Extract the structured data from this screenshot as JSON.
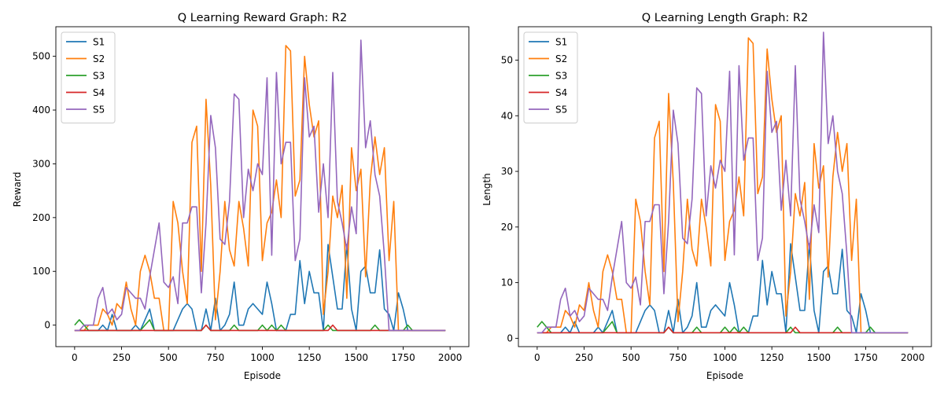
{
  "series_colors": {
    "S1": "#1f77b4",
    "S2": "#ff7f0e",
    "S3": "#2ca02c",
    "S4": "#d62728",
    "S5": "#9467bd"
  },
  "chart_data": [
    {
      "type": "line",
      "title": "Q Learning Reward Graph: R2",
      "xlabel": "Episode",
      "ylabel": "Reward",
      "xlim": [
        -100,
        2100
      ],
      "ylim": [
        -40,
        555
      ],
      "xticks": [
        0,
        250,
        500,
        750,
        1000,
        1250,
        1500,
        1750,
        2000
      ],
      "yticks": [
        0,
        100,
        200,
        300,
        400,
        500
      ],
      "grid": false,
      "legend_position": "upper-left",
      "x": [
        0,
        25,
        50,
        75,
        100,
        125,
        150,
        175,
        200,
        225,
        250,
        275,
        300,
        325,
        350,
        375,
        400,
        425,
        450,
        475,
        500,
        525,
        550,
        575,
        600,
        625,
        650,
        675,
        700,
        725,
        750,
        775,
        800,
        825,
        850,
        875,
        900,
        925,
        950,
        975,
        1000,
        1025,
        1050,
        1075,
        1100,
        1125,
        1150,
        1175,
        1200,
        1225,
        1250,
        1275,
        1300,
        1325,
        1350,
        1375,
        1400,
        1425,
        1450,
        1475,
        1500,
        1525,
        1550,
        1575,
        1600,
        1625,
        1650,
        1675,
        1700,
        1725,
        1750,
        1775,
        1800,
        1825,
        1850,
        1875,
        1900,
        1925,
        1950,
        1975
      ],
      "series": [
        {
          "name": "S1",
          "values": [
            -10,
            -10,
            -10,
            -10,
            -10,
            -10,
            0,
            -10,
            20,
            -10,
            -10,
            -10,
            -10,
            0,
            -10,
            10,
            30,
            -10,
            -10,
            -10,
            -10,
            -10,
            10,
            30,
            40,
            30,
            -10,
            -10,
            30,
            -10,
            50,
            -10,
            0,
            20,
            80,
            0,
            0,
            30,
            40,
            30,
            20,
            80,
            40,
            -10,
            -10,
            -10,
            20,
            20,
            120,
            40,
            100,
            60,
            60,
            -10,
            150,
            90,
            30,
            30,
            150,
            30,
            -10,
            100,
            110,
            60,
            60,
            140,
            30,
            20,
            -10,
            60,
            30,
            -10,
            -10,
            -10,
            -10,
            -10,
            -10,
            -10,
            -10,
            -10
          ]
        },
        {
          "name": "S2",
          "values": [
            -10,
            -10,
            -10,
            0,
            0,
            0,
            30,
            20,
            0,
            40,
            30,
            80,
            30,
            0,
            100,
            130,
            100,
            50,
            50,
            -10,
            -10,
            230,
            190,
            100,
            40,
            340,
            370,
            100,
            420,
            260,
            10,
            100,
            230,
            140,
            110,
            230,
            180,
            110,
            400,
            370,
            120,
            190,
            210,
            270,
            200,
            520,
            510,
            240,
            270,
            500,
            410,
            350,
            380,
            20,
            100,
            240,
            200,
            260,
            50,
            330,
            250,
            290,
            90,
            270,
            350,
            280,
            330,
            120,
            230,
            -10,
            -10,
            -10,
            -10,
            -10,
            -10,
            -10,
            -10,
            -10,
            -10,
            -10
          ]
        },
        {
          "name": "S3",
          "values": [
            0,
            10,
            0,
            -10,
            -10,
            -10,
            -10,
            -10,
            -10,
            -10,
            -10,
            -10,
            -10,
            -10,
            -10,
            0,
            10,
            -10,
            -10,
            -10,
            -10,
            -10,
            -10,
            -10,
            -10,
            -10,
            -10,
            -10,
            0,
            -10,
            -10,
            -10,
            -10,
            -10,
            0,
            -10,
            -10,
            -10,
            -10,
            -10,
            0,
            -10,
            0,
            -10,
            0,
            -10,
            -10,
            -10,
            -10,
            -10,
            -10,
            -10,
            -10,
            -10,
            0,
            -10,
            -10,
            -10,
            -10,
            -10,
            -10,
            -10,
            -10,
            -10,
            0,
            -10,
            -10,
            -10,
            -10,
            -10,
            -10,
            0,
            -10,
            -10,
            -10,
            -10,
            -10,
            -10,
            -10,
            -10
          ]
        },
        {
          "name": "S4",
          "values": [
            -10,
            -10,
            -10,
            -10,
            -10,
            -10,
            -10,
            -10,
            -10,
            -10,
            -10,
            -10,
            -10,
            -10,
            -10,
            -10,
            -10,
            -10,
            -10,
            -10,
            -10,
            -10,
            -10,
            -10,
            -10,
            -10,
            -10,
            -10,
            0,
            -10,
            -10,
            -10,
            -10,
            -10,
            -10,
            -10,
            -10,
            -10,
            -10,
            -10,
            -10,
            -10,
            -10,
            -10,
            -10,
            -10,
            -10,
            -10,
            -10,
            -10,
            -10,
            -10,
            -10,
            -10,
            -10,
            0,
            -10,
            -10,
            -10,
            -10,
            -10,
            -10,
            -10,
            -10,
            -10,
            -10,
            -10,
            -10,
            -10,
            -10,
            -10,
            -10,
            -10,
            -10,
            -10,
            -10,
            -10,
            -10,
            -10,
            -10
          ]
        },
        {
          "name": "S5",
          "values": [
            -10,
            -10,
            0,
            0,
            0,
            50,
            70,
            20,
            30,
            10,
            20,
            70,
            60,
            50,
            50,
            30,
            90,
            140,
            190,
            80,
            70,
            90,
            40,
            190,
            190,
            220,
            220,
            60,
            190,
            390,
            330,
            160,
            150,
            230,
            430,
            420,
            200,
            290,
            250,
            300,
            280,
            460,
            130,
            470,
            300,
            340,
            340,
            120,
            160,
            460,
            350,
            370,
            210,
            300,
            200,
            470,
            230,
            190,
            140,
            220,
            170,
            530,
            330,
            380,
            280,
            240,
            130,
            -10,
            -10,
            -10,
            -10,
            -10,
            -10,
            -10,
            -10,
            -10,
            -10,
            -10,
            -10,
            -10
          ]
        }
      ]
    },
    {
      "type": "line",
      "title": "Q Learning Length Graph: R2",
      "xlabel": "Episode",
      "ylabel": "Length",
      "xlim": [
        -100,
        2100
      ],
      "ylim": [
        -1.5,
        56
      ],
      "xticks": [
        0,
        250,
        500,
        750,
        1000,
        1250,
        1500,
        1750,
        2000
      ],
      "yticks": [
        0,
        10,
        20,
        30,
        40,
        50
      ],
      "grid": false,
      "legend_position": "upper-left",
      "x": [
        0,
        25,
        50,
        75,
        100,
        125,
        150,
        175,
        200,
        225,
        250,
        275,
        300,
        325,
        350,
        375,
        400,
        425,
        450,
        475,
        500,
        525,
        550,
        575,
        600,
        625,
        650,
        675,
        700,
        725,
        750,
        775,
        800,
        825,
        850,
        875,
        900,
        925,
        950,
        975,
        1000,
        1025,
        1050,
        1075,
        1100,
        1125,
        1150,
        1175,
        1200,
        1225,
        1250,
        1275,
        1300,
        1325,
        1350,
        1375,
        1400,
        1425,
        1450,
        1475,
        1500,
        1525,
        1550,
        1575,
        1600,
        1625,
        1650,
        1675,
        1700,
        1725,
        1750,
        1775,
        1800,
        1825,
        1850,
        1875,
        1900,
        1925,
        1950,
        1975
      ],
      "series": [
        {
          "name": "S1",
          "values": [
            1,
            1,
            1,
            1,
            1,
            1,
            2,
            1,
            3,
            1,
            1,
            1,
            1,
            2,
            1,
            3,
            5,
            1,
            1,
            1,
            1,
            1,
            3,
            5,
            6,
            5,
            1,
            1,
            5,
            1,
            7,
            1,
            2,
            4,
            10,
            2,
            2,
            5,
            6,
            5,
            4,
            10,
            6,
            1,
            1,
            1,
            4,
            4,
            14,
            6,
            12,
            8,
            8,
            1,
            17,
            11,
            5,
            5,
            17,
            5,
            1,
            12,
            13,
            8,
            8,
            16,
            5,
            4,
            1,
            8,
            5,
            1,
            1,
            1,
            1,
            1,
            1,
            1,
            1,
            1
          ]
        },
        {
          "name": "S2",
          "values": [
            1,
            1,
            1,
            2,
            2,
            2,
            5,
            4,
            2,
            6,
            5,
            10,
            5,
            2,
            12,
            15,
            12,
            7,
            7,
            1,
            1,
            25,
            21,
            12,
            6,
            36,
            39,
            12,
            44,
            28,
            3,
            12,
            25,
            16,
            13,
            25,
            20,
            13,
            42,
            39,
            14,
            21,
            23,
            29,
            22,
            54,
            53,
            26,
            29,
            52,
            43,
            37,
            40,
            4,
            12,
            26,
            22,
            28,
            7,
            35,
            27,
            31,
            11,
            29,
            37,
            30,
            35,
            14,
            25,
            1,
            1,
            1,
            1,
            1,
            1,
            1,
            1,
            1,
            1,
            1
          ]
        },
        {
          "name": "S3",
          "values": [
            2,
            3,
            2,
            1,
            1,
            1,
            1,
            1,
            1,
            1,
            1,
            1,
            1,
            1,
            1,
            2,
            3,
            1,
            1,
            1,
            1,
            1,
            1,
            1,
            1,
            1,
            1,
            1,
            2,
            1,
            1,
            1,
            1,
            1,
            2,
            1,
            1,
            1,
            1,
            1,
            2,
            1,
            2,
            1,
            2,
            1,
            1,
            1,
            1,
            1,
            1,
            1,
            1,
            1,
            2,
            1,
            1,
            1,
            1,
            1,
            1,
            1,
            1,
            1,
            2,
            1,
            1,
            1,
            1,
            1,
            1,
            2,
            1,
            1,
            1,
            1,
            1,
            1,
            1,
            1
          ]
        },
        {
          "name": "S4",
          "values": [
            1,
            1,
            1,
            1,
            1,
            1,
            1,
            1,
            1,
            1,
            1,
            1,
            1,
            1,
            1,
            1,
            1,
            1,
            1,
            1,
            1,
            1,
            1,
            1,
            1,
            1,
            1,
            1,
            2,
            1,
            1,
            1,
            1,
            1,
            1,
            1,
            1,
            1,
            1,
            1,
            1,
            1,
            1,
            1,
            1,
            1,
            1,
            1,
            1,
            1,
            1,
            1,
            1,
            1,
            1,
            2,
            1,
            1,
            1,
            1,
            1,
            1,
            1,
            1,
            1,
            1,
            1,
            1,
            1,
            1,
            1,
            1,
            1,
            1,
            1,
            1,
            1,
            1,
            1,
            1
          ]
        },
        {
          "name": "S5",
          "values": [
            1,
            1,
            2,
            2,
            2,
            7,
            9,
            4,
            5,
            3,
            4,
            9,
            8,
            7,
            7,
            5,
            11,
            16,
            21,
            10,
            9,
            11,
            6,
            21,
            21,
            24,
            24,
            8,
            21,
            41,
            35,
            18,
            17,
            25,
            45,
            44,
            22,
            31,
            27,
            32,
            30,
            48,
            15,
            49,
            32,
            36,
            36,
            14,
            18,
            48,
            37,
            39,
            23,
            32,
            22,
            49,
            25,
            21,
            16,
            24,
            19,
            55,
            35,
            40,
            30,
            26,
            15,
            1,
            1,
            1,
            1,
            1,
            1,
            1,
            1,
            1,
            1,
            1,
            1,
            1
          ]
        }
      ]
    }
  ]
}
